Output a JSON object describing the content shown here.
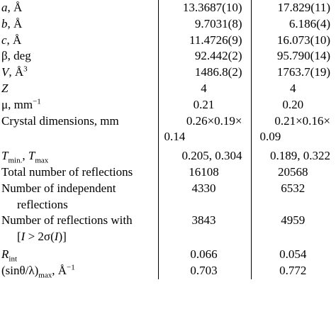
{
  "rows": [
    {
      "id": "a",
      "label_main": "a",
      "label_rest": ", Å",
      "v1": "13.3687(10)",
      "v2": "17.829(11)"
    },
    {
      "id": "b",
      "label_main": "b",
      "label_rest": ", Å",
      "v1": "9.7031(8)",
      "v2": "6.186(4)"
    },
    {
      "id": "c",
      "label_main": "c",
      "label_rest": ", Å",
      "v1": "11.4726(9)",
      "v2": "16.073(10)"
    },
    {
      "id": "beta",
      "label_main": "β, deg",
      "v1": "92.442(2)",
      "v2": "95.790(14)"
    },
    {
      "id": "volume",
      "label_main": "V",
      "label_rest": ", Å",
      "label_sup": "3",
      "v1": "1486.8(2)",
      "v2": "1763.7(19)"
    },
    {
      "id": "z",
      "label_main": "Z",
      "v1": "4",
      "v2": "4"
    },
    {
      "id": "mu",
      "label_main": "μ, mm",
      "label_sup": "−1",
      "v1": "0.21",
      "v2": "0.20"
    },
    {
      "id": "dims",
      "label_main": "Crystal dimensions, mm",
      "v1": "0.26×0.19×",
      "v1b": "0.14",
      "v2": "0.21×0.16×",
      "v2b": "0.09"
    },
    {
      "id": "tminmax",
      "t1": "T",
      "t1sub": "min.",
      "sep": ", ",
      "t2": "T",
      "t2sub": "max",
      "v1": "0.205, 0.304",
      "v2": "0.189, 0.322"
    },
    {
      "id": "total_refl",
      "label_main": "Total number of reflections",
      "v1": "16108",
      "v2": "20568"
    },
    {
      "id": "indep_refl",
      "label_main": "Number of independent",
      "label_cont": "reflections",
      "v1": "4330",
      "v2": "6532"
    },
    {
      "id": "refl_with",
      "label_main": "Number of reflections with",
      "label_cont_pre": "[",
      "label_cont_i": "I",
      "label_cont_mid": " > 2σ(",
      "label_cont_i2": "I",
      "label_cont_post": ")]",
      "v1": "3843",
      "v2": "4959"
    },
    {
      "id": "rint",
      "label_main": "R",
      "label_sub": "int",
      "v1": "0.066",
      "v2": "0.054"
    },
    {
      "id": "sinmax",
      "label_main": "(sinθ/λ)",
      "label_sub": "max",
      "label_rest": ", Å",
      "label_sup": "−1",
      "v1": "0.703",
      "v2": "0.772"
    }
  ]
}
